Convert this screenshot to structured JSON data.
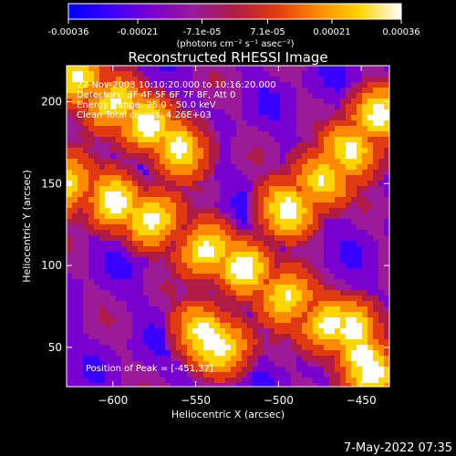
{
  "colorbar": {
    "tick_labels": [
      "-0.00036",
      "-0.00021",
      "-7.1e-05",
      "7.1e-05",
      "0.00021",
      "0.00036"
    ],
    "unit_label": "(photons cm⁻² s⁻¹ asec⁻²)",
    "range": [
      -0.00036,
      0.00036
    ],
    "colormap": [
      "#0000ff",
      "#3a00ff",
      "#7a00d0",
      "#9a1a9a",
      "#b01c45",
      "#e23a10",
      "#ff8a00",
      "#ffd400",
      "#ffffff"
    ]
  },
  "chart_data": {
    "type": "heatmap",
    "title": "Reconstructed RHESSI Image",
    "xlabel": "Heliocentric X (arcsec)",
    "ylabel": "Heliocentric Y (arcsec)",
    "xlim": [
      -628,
      -433
    ],
    "ylim": [
      26,
      222
    ],
    "x_ticks": [
      -600,
      -550,
      -500,
      -450
    ],
    "y_ticks": [
      50,
      100,
      150,
      200
    ],
    "annotations": [
      "22-Nov-2003 10:10:20.000 to 10:16:20.000",
      "Detectors: 3F 4F 5F 6F 7F 8F, Att 0",
      "Energy Range: 25.0 - 50.0 keV",
      "Clean    Total counts: 4.26E+03"
    ],
    "peak_text": "Position of Peak = [-451,37]",
    "peak_position": [
      -451,
      37
    ],
    "bright_ridges": [
      {
        "x": [
          -628,
          -600,
          -575,
          -545,
          -520,
          -495,
          -470
        ],
        "y": [
          150,
          140,
          128,
          110,
          98,
          82,
          62
        ]
      },
      {
        "x": [
          -620,
          -600,
          -580,
          -560
        ],
        "y": [
          215,
          200,
          185,
          172
        ]
      },
      {
        "x": [
          -495,
          -475,
          -455,
          -440
        ],
        "y": [
          135,
          152,
          170,
          190
        ]
      },
      {
        "x": [
          -545,
          -540,
          -535
        ],
        "y": [
          60,
          56,
          52
        ]
      },
      {
        "x": [
          -455,
          -450,
          -445
        ],
        "y": [
          60,
          45,
          35
        ]
      }
    ]
  },
  "footer": {
    "timestamp": "7-May-2022 07:35"
  }
}
